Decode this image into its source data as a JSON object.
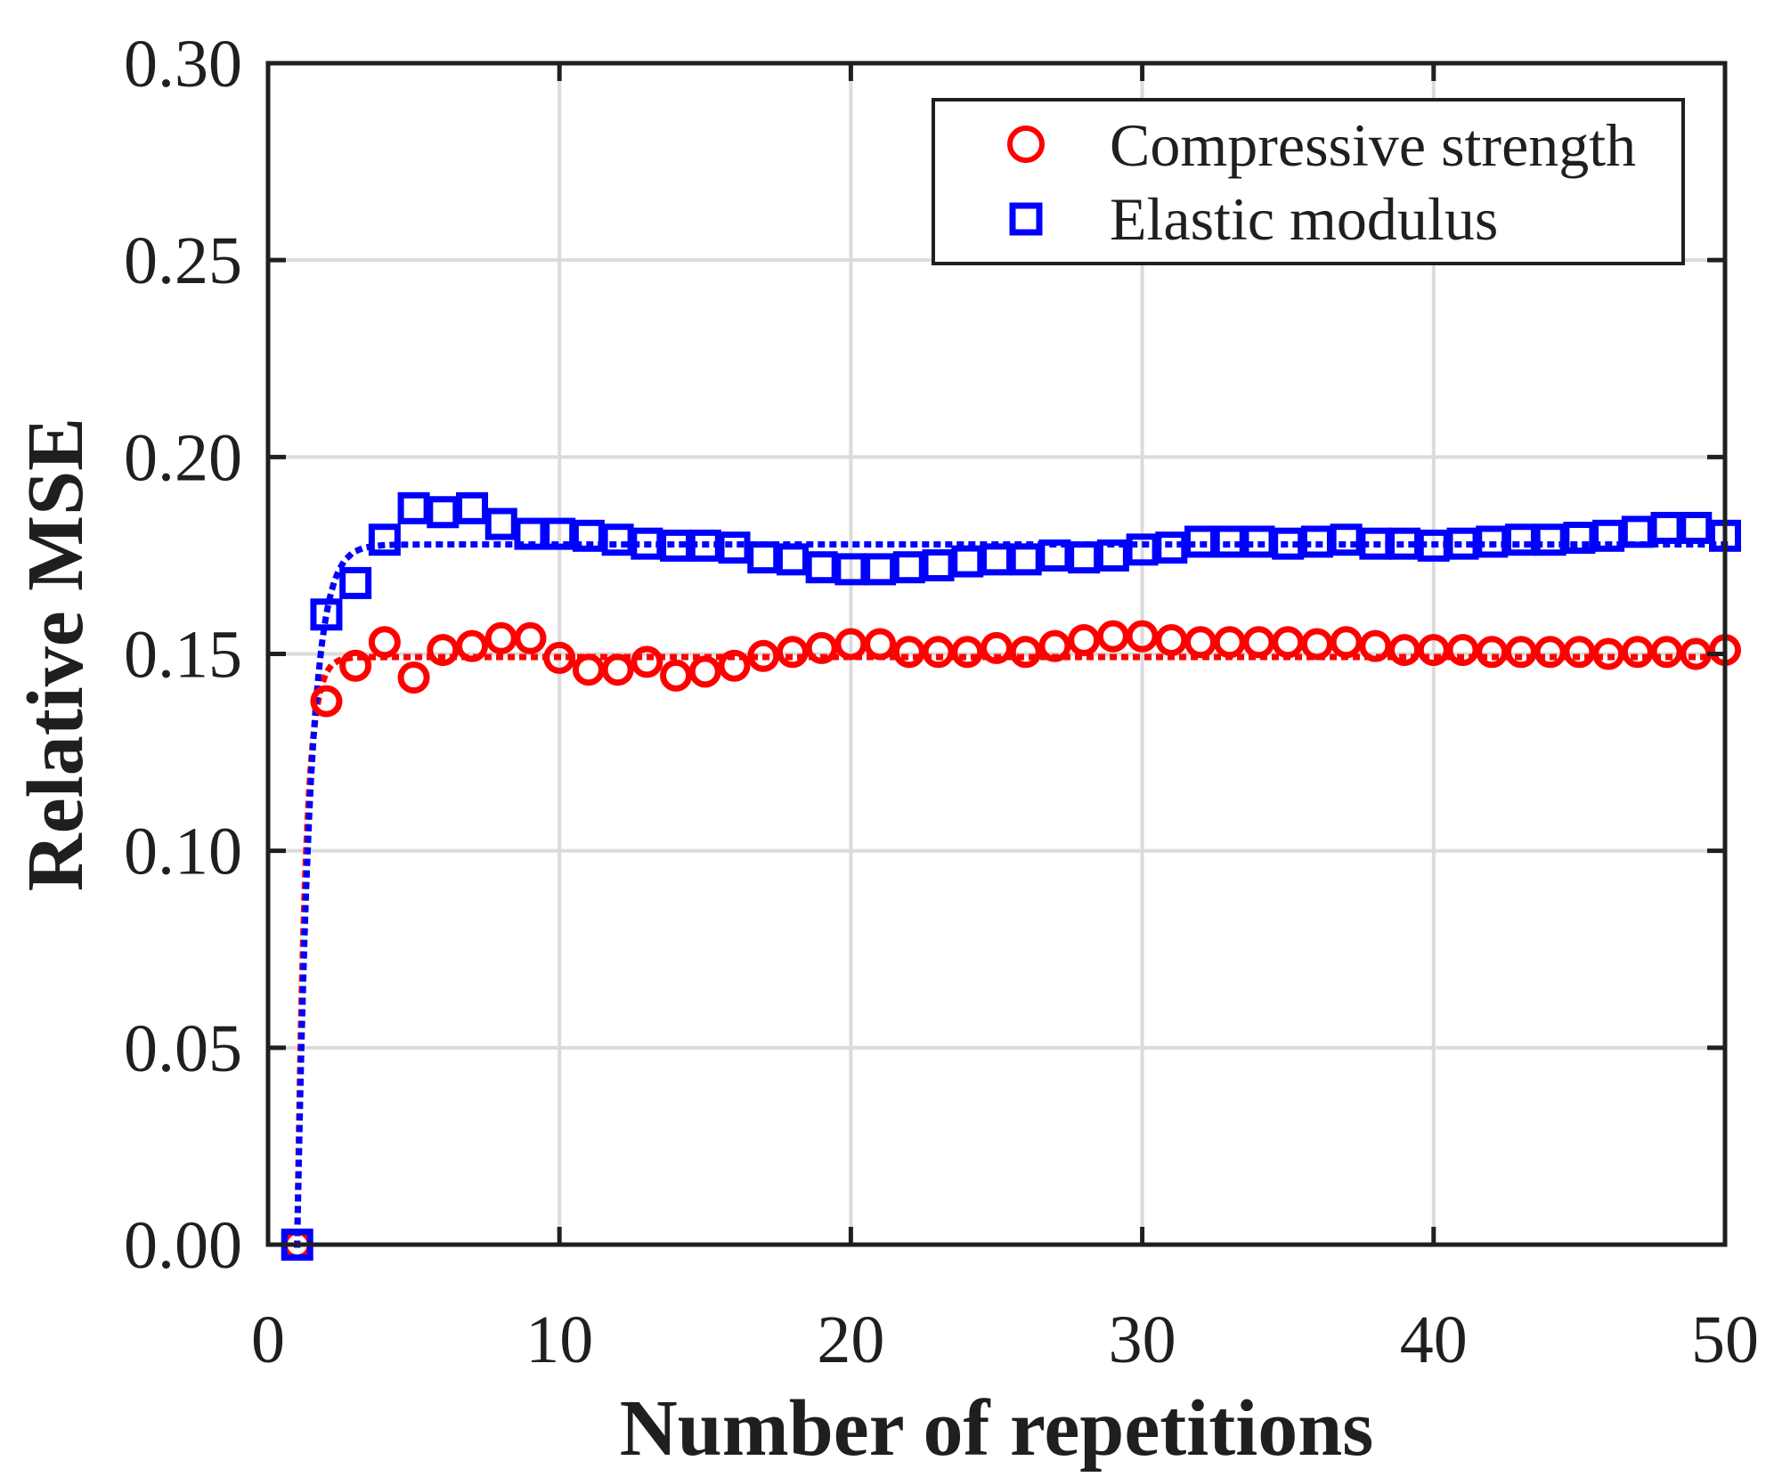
{
  "figure": {
    "background": "#ffffff",
    "axis_color": "#1f1f1f",
    "grid_color": "#dbdbdb",
    "accent_red": "#ff0000",
    "accent_blue": "#0000ff"
  },
  "chart_data": {
    "type": "scatter",
    "title": "",
    "xlabel": "Number of repetitions",
    "ylabel": "Relative MSE",
    "xlim": [
      0,
      50
    ],
    "ylim": [
      0.0,
      0.3
    ],
    "grid": true,
    "legend_position": "top-right",
    "xticks": {
      "values": [
        0,
        10,
        20,
        30,
        40,
        50
      ],
      "labels": [
        "0",
        "10",
        "20",
        "30",
        "40",
        "50"
      ]
    },
    "yticks": {
      "values": [
        0.0,
        0.05,
        0.1,
        0.15,
        0.2,
        0.25,
        0.3
      ],
      "labels": [
        "0.00",
        "0.05",
        "0.10",
        "0.15",
        "0.20",
        "0.25",
        "0.30"
      ]
    },
    "x": [
      1,
      2,
      3,
      4,
      5,
      6,
      7,
      8,
      9,
      10,
      11,
      12,
      13,
      14,
      15,
      16,
      17,
      18,
      19,
      20,
      21,
      22,
      23,
      24,
      25,
      26,
      27,
      28,
      29,
      30,
      31,
      32,
      33,
      34,
      35,
      36,
      37,
      38,
      39,
      40,
      41,
      42,
      43,
      44,
      45,
      46,
      47,
      48,
      49,
      50
    ],
    "series": [
      {
        "name": "Compressive strength",
        "marker": "circle",
        "color": "#ff0000",
        "values": [
          0.0,
          0.138,
          0.147,
          0.153,
          0.144,
          0.151,
          0.152,
          0.154,
          0.154,
          0.149,
          0.146,
          0.146,
          0.148,
          0.1445,
          0.1455,
          0.147,
          0.1495,
          0.1505,
          0.1515,
          0.1525,
          0.1525,
          0.1505,
          0.1505,
          0.1505,
          0.1515,
          0.1505,
          0.152,
          0.1535,
          0.1545,
          0.1545,
          0.1535,
          0.153,
          0.153,
          0.153,
          0.153,
          0.1525,
          0.153,
          0.152,
          0.151,
          0.151,
          0.151,
          0.1505,
          0.1505,
          0.1505,
          0.1505,
          0.15,
          0.1505,
          0.1505,
          0.15,
          0.151
        ],
        "fit_line": {
          "style": "dotted",
          "plateau": 0.1492,
          "rate": 3.6,
          "start_x": 1
        }
      },
      {
        "name": "Elastic modulus",
        "marker": "square",
        "color": "#0000ff",
        "values": [
          0.0,
          0.16,
          0.168,
          0.179,
          0.187,
          0.186,
          0.187,
          0.183,
          0.1805,
          0.1805,
          0.18,
          0.179,
          0.178,
          0.1775,
          0.1775,
          0.177,
          0.1745,
          0.174,
          0.172,
          0.1715,
          0.1715,
          0.172,
          0.1725,
          0.1735,
          0.174,
          0.174,
          0.175,
          0.1745,
          0.175,
          0.1765,
          0.177,
          0.1785,
          0.1785,
          0.1785,
          0.178,
          0.1785,
          0.179,
          0.178,
          0.178,
          0.1775,
          0.178,
          0.1785,
          0.179,
          0.179,
          0.1795,
          0.18,
          0.181,
          0.182,
          0.182,
          0.18
        ],
        "fit_line": {
          "style": "dotted",
          "plateau": 0.1778,
          "rate": 2.3,
          "start_x": 1
        }
      }
    ]
  }
}
